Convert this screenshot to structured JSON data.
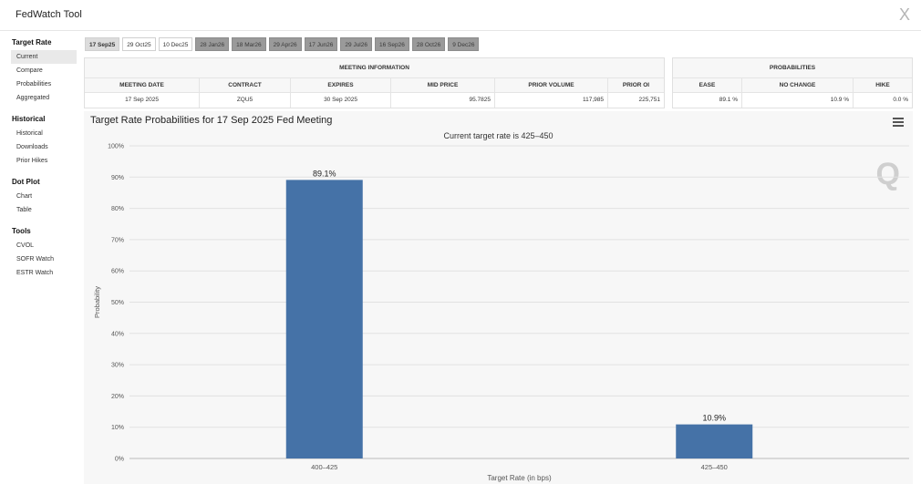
{
  "app": {
    "title": "FedWatch Tool",
    "close_label": "X"
  },
  "sidebar": [
    {
      "heading": "Target Rate",
      "items": [
        {
          "label": "Current",
          "active": true
        },
        {
          "label": "Compare"
        },
        {
          "label": "Probabilities"
        },
        {
          "label": "Aggregated"
        }
      ]
    },
    {
      "heading": "Historical",
      "items": [
        {
          "label": "Historical"
        },
        {
          "label": "Downloads"
        },
        {
          "label": "Prior Hikes"
        }
      ]
    },
    {
      "heading": "Dot Plot",
      "items": [
        {
          "label": "Chart"
        },
        {
          "label": "Table"
        }
      ]
    },
    {
      "heading": "Tools",
      "items": [
        {
          "label": "CVOL"
        },
        {
          "label": "SOFR Watch"
        },
        {
          "label": "ESTR Watch"
        }
      ]
    }
  ],
  "tabs": [
    {
      "label": "17 Sep25",
      "style": "selected"
    },
    {
      "label": "29 Oct25",
      "style": "white"
    },
    {
      "label": "10 Dec25",
      "style": "white"
    },
    {
      "label": "28 Jan26",
      "style": "dark"
    },
    {
      "label": "18 Mar26",
      "style": "dark"
    },
    {
      "label": "29 Apr26",
      "style": "dark"
    },
    {
      "label": "17 Jun26",
      "style": "dark"
    },
    {
      "label": "29 Jul26",
      "style": "dark"
    },
    {
      "label": "16 Sep26",
      "style": "dark"
    },
    {
      "label": "28 Oct26",
      "style": "dark"
    },
    {
      "label": "9 Dec26",
      "style": "dark"
    }
  ],
  "meeting_info": {
    "title": "MEETING INFORMATION",
    "headers": [
      "MEETING DATE",
      "CONTRACT",
      "EXPIRES",
      "MID PRICE",
      "PRIOR VOLUME",
      "PRIOR OI"
    ],
    "row": [
      "17 Sep 2025",
      "ZQU5",
      "30 Sep 2025",
      "95.7825",
      "117,985",
      "225,751"
    ]
  },
  "probabilities": {
    "title": "PROBABILITIES",
    "headers": [
      "EASE",
      "NO CHANGE",
      "HIKE"
    ],
    "row": [
      "89.1 %",
      "10.9 %",
      "0.0 %"
    ]
  },
  "chart_data": {
    "type": "bar",
    "title": "Target Rate Probabilities for 17 Sep 2025 Fed Meeting",
    "subtitle": "Current target rate is 425–450",
    "xlabel": "Target Rate (in bps)",
    "ylabel": "Probability",
    "categories": [
      "400–425",
      "425–450"
    ],
    "values": [
      89.1,
      10.9
    ],
    "data_labels": [
      "89.1%",
      "10.9%"
    ],
    "ylim": [
      0,
      100
    ],
    "yticks": [
      "0%",
      "10%",
      "20%",
      "30%",
      "40%",
      "50%",
      "60%",
      "70%",
      "80%",
      "90%",
      "100%"
    ],
    "bar_color": "#4572a7",
    "grid": true,
    "watermark": "Q"
  }
}
